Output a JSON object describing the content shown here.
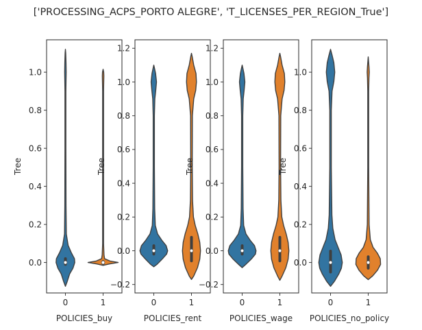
{
  "figure": {
    "title": "['PROCESSING_ACPS_PORTO ALEGRE', 'T_LICENSES_PER_REGION_True']"
  },
  "colors": {
    "group0": "#3274a1",
    "group1": "#e1812c",
    "edge": "#3f3f3f",
    "spine": "#262626"
  },
  "chart_data": [
    {
      "type": "violin",
      "xlabel": "POLICIES_buy",
      "ylabel": "Tree",
      "ylim": [
        -0.16,
        1.17
      ],
      "yticks": [
        0.0,
        0.2,
        0.4,
        0.6,
        0.8,
        1.0
      ],
      "ytick_labels": [
        "0.0",
        "0.2",
        "0.4",
        "0.6",
        "0.8",
        "1.0"
      ],
      "categories": [
        "0",
        "1"
      ],
      "violins": [
        {
          "category": "0",
          "median": 0.0,
          "q1": -0.01,
          "q3": 0.02,
          "profile": [
            [
              -0.125,
              0.0
            ],
            [
              -0.1,
              0.12
            ],
            [
              -0.06,
              0.28
            ],
            [
              -0.03,
              0.5
            ],
            [
              0.0,
              0.62
            ],
            [
              0.02,
              0.6
            ],
            [
              0.05,
              0.4
            ],
            [
              0.09,
              0.18
            ],
            [
              0.15,
              0.06
            ],
            [
              0.3,
              0.04
            ],
            [
              0.6,
              0.03
            ],
            [
              0.9,
              0.03
            ],
            [
              1.0,
              0.05
            ],
            [
              1.05,
              0.04
            ],
            [
              1.1,
              0.02
            ],
            [
              1.12,
              0.0
            ]
          ]
        },
        {
          "category": "1",
          "median": 0.0,
          "q1": -0.005,
          "q3": 0.005,
          "profile": [
            [
              -0.015,
              0.0
            ],
            [
              -0.008,
              0.4
            ],
            [
              0.0,
              1.0
            ],
            [
              0.008,
              0.45
            ],
            [
              0.02,
              0.1
            ],
            [
              0.04,
              0.06
            ],
            [
              0.1,
              0.03
            ],
            [
              0.3,
              0.03
            ],
            [
              0.6,
              0.03
            ],
            [
              0.9,
              0.03
            ],
            [
              0.98,
              0.05
            ],
            [
              1.0,
              0.04
            ],
            [
              1.015,
              0.0
            ]
          ]
        }
      ]
    },
    {
      "type": "violin",
      "xlabel": "POLICIES_rent",
      "ylabel": "Tree",
      "ylim": [
        -0.25,
        1.25
      ],
      "yticks": [
        -0.2,
        0.0,
        0.2,
        0.4,
        0.6,
        0.8,
        1.0,
        1.2
      ],
      "ytick_labels": [
        "−0.2",
        "0.0",
        "0.2",
        "0.4",
        "0.6",
        "0.8",
        "1.0",
        "1.2"
      ],
      "categories": [
        "0",
        "1"
      ],
      "violins": [
        {
          "category": "0",
          "median": 0.0,
          "q1": -0.02,
          "q3": 0.03,
          "profile": [
            [
              -0.095,
              0.0
            ],
            [
              -0.08,
              0.22
            ],
            [
              -0.05,
              0.55
            ],
            [
              -0.02,
              0.85
            ],
            [
              0.0,
              0.92
            ],
            [
              0.03,
              0.82
            ],
            [
              0.06,
              0.55
            ],
            [
              0.1,
              0.25
            ],
            [
              0.15,
              0.1
            ],
            [
              0.25,
              0.06
            ],
            [
              0.5,
              0.04
            ],
            [
              0.8,
              0.04
            ],
            [
              0.9,
              0.07
            ],
            [
              0.95,
              0.13
            ],
            [
              1.0,
              0.18
            ],
            [
              1.05,
              0.12
            ],
            [
              1.08,
              0.05
            ],
            [
              1.1,
              0.0
            ]
          ]
        },
        {
          "category": "1",
          "median": 0.0,
          "q1": -0.06,
          "q3": 0.08,
          "profile": [
            [
              -0.17,
              0.0
            ],
            [
              -0.15,
              0.15
            ],
            [
              -0.1,
              0.4
            ],
            [
              -0.05,
              0.55
            ],
            [
              0.0,
              0.6
            ],
            [
              0.05,
              0.55
            ],
            [
              0.1,
              0.42
            ],
            [
              0.15,
              0.25
            ],
            [
              0.2,
              0.13
            ],
            [
              0.3,
              0.07
            ],
            [
              0.5,
              0.05
            ],
            [
              0.8,
              0.06
            ],
            [
              0.9,
              0.15
            ],
            [
              0.95,
              0.28
            ],
            [
              1.0,
              0.33
            ],
            [
              1.05,
              0.3
            ],
            [
              1.1,
              0.15
            ],
            [
              1.15,
              0.05
            ],
            [
              1.17,
              0.0
            ]
          ]
        }
      ]
    },
    {
      "type": "violin",
      "xlabel": "POLICIES_wage",
      "ylabel": "Tree",
      "ylim": [
        -0.25,
        1.25
      ],
      "yticks": [
        -0.2,
        0.0,
        0.2,
        0.4,
        0.6,
        0.8,
        1.0,
        1.2
      ],
      "ytick_labels": [
        "−0.2",
        "0.0",
        "0.2",
        "0.4",
        "0.6",
        "0.8",
        "1.0",
        "1.2"
      ],
      "categories": [
        "0",
        "1"
      ],
      "violins": [
        {
          "category": "0",
          "median": 0.0,
          "q1": -0.02,
          "q3": 0.03,
          "profile": [
            [
              -0.1,
              0.0
            ],
            [
              -0.08,
              0.25
            ],
            [
              -0.05,
              0.6
            ],
            [
              -0.02,
              0.88
            ],
            [
              0.0,
              0.92
            ],
            [
              0.03,
              0.82
            ],
            [
              0.06,
              0.55
            ],
            [
              0.1,
              0.25
            ],
            [
              0.15,
              0.1
            ],
            [
              0.25,
              0.06
            ],
            [
              0.5,
              0.04
            ],
            [
              0.8,
              0.04
            ],
            [
              0.9,
              0.07
            ],
            [
              0.95,
              0.13
            ],
            [
              1.0,
              0.18
            ],
            [
              1.05,
              0.12
            ],
            [
              1.08,
              0.05
            ],
            [
              1.1,
              0.0
            ]
          ]
        },
        {
          "category": "1",
          "median": 0.0,
          "q1": -0.06,
          "q3": 0.08,
          "profile": [
            [
              -0.175,
              0.0
            ],
            [
              -0.15,
              0.15
            ],
            [
              -0.1,
              0.4
            ],
            [
              -0.05,
              0.55
            ],
            [
              0.0,
              0.6
            ],
            [
              0.05,
              0.55
            ],
            [
              0.1,
              0.42
            ],
            [
              0.15,
              0.25
            ],
            [
              0.2,
              0.13
            ],
            [
              0.3,
              0.07
            ],
            [
              0.5,
              0.05
            ],
            [
              0.8,
              0.06
            ],
            [
              0.9,
              0.15
            ],
            [
              0.95,
              0.28
            ],
            [
              1.0,
              0.33
            ],
            [
              1.05,
              0.3
            ],
            [
              1.1,
              0.15
            ],
            [
              1.15,
              0.05
            ],
            [
              1.17,
              0.0
            ]
          ]
        }
      ]
    },
    {
      "type": "violin",
      "xlabel": "POLICIES_no_policy",
      "ylabel": "Tree",
      "ylim": [
        -0.16,
        1.17
      ],
      "yticks": [
        0.0,
        0.2,
        0.4,
        0.6,
        0.8,
        1.0
      ],
      "ytick_labels": [
        "0.0",
        "0.2",
        "0.4",
        "0.6",
        "0.8",
        "1.0"
      ],
      "categories": [
        "0",
        "1"
      ],
      "violins": [
        {
          "category": "0",
          "median": 0.0,
          "q1": -0.05,
          "q3": 0.06,
          "profile": [
            [
              -0.125,
              0.0
            ],
            [
              -0.1,
              0.25
            ],
            [
              -0.06,
              0.55
            ],
            [
              -0.03,
              0.72
            ],
            [
              0.0,
              0.78
            ],
            [
              0.04,
              0.7
            ],
            [
              0.08,
              0.5
            ],
            [
              0.12,
              0.3
            ],
            [
              0.18,
              0.15
            ],
            [
              0.25,
              0.09
            ],
            [
              0.5,
              0.05
            ],
            [
              0.8,
              0.05
            ],
            [
              0.9,
              0.1
            ],
            [
              0.95,
              0.22
            ],
            [
              1.0,
              0.28
            ],
            [
              1.05,
              0.22
            ],
            [
              1.09,
              0.1
            ],
            [
              1.12,
              0.0
            ]
          ]
        },
        {
          "category": "1",
          "median": 0.0,
          "q1": -0.03,
          "q3": 0.03,
          "profile": [
            [
              -0.09,
              0.0
            ],
            [
              -0.07,
              0.3
            ],
            [
              -0.04,
              0.62
            ],
            [
              -0.01,
              0.82
            ],
            [
              0.02,
              0.8
            ],
            [
              0.05,
              0.6
            ],
            [
              0.08,
              0.32
            ],
            [
              0.12,
              0.14
            ],
            [
              0.2,
              0.06
            ],
            [
              0.5,
              0.03
            ],
            [
              0.9,
              0.03
            ],
            [
              0.97,
              0.05
            ],
            [
              1.0,
              0.07
            ],
            [
              1.03,
              0.05
            ],
            [
              1.06,
              0.02
            ],
            [
              1.08,
              0.0
            ]
          ]
        }
      ]
    }
  ]
}
